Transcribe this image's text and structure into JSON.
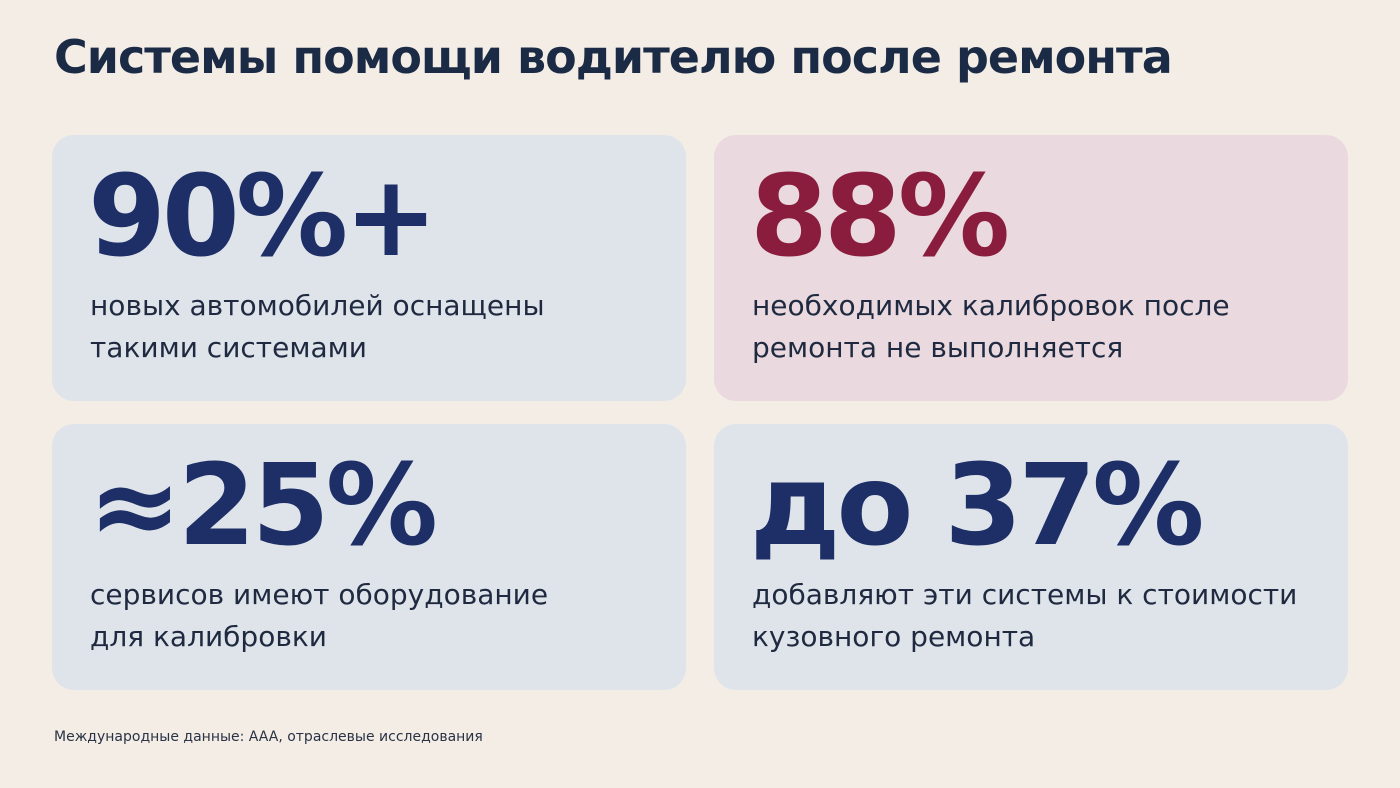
{
  "title": "Системы помощи водителю после ремонта",
  "colors": {
    "background": "#f3ede6",
    "card_blue": "#dfe4eb",
    "card_pink": "#eadadf",
    "navy": "#1d2f66",
    "maroon": "#8a1d3e",
    "title_text": "#1b2b45"
  },
  "cards": [
    {
      "value": "90%+",
      "line1": "новых автомобилей оснащены",
      "line2": "такими системами",
      "accent": "navy"
    },
    {
      "value": "88%",
      "line1": "необходимых калибровок после",
      "line2": "ремонта не выполняется",
      "accent": "maroon"
    },
    {
      "value": "≈25%",
      "line1": "сервисов имеют оборудование",
      "line2": "для калибровки",
      "accent": "navy"
    },
    {
      "value": "до 37%",
      "line1": "добавляют эти системы к стоимости",
      "line2": "кузовного ремонта",
      "accent": "navy"
    }
  ],
  "footnote": "Международные данные: AAA, отраслевые исследования"
}
